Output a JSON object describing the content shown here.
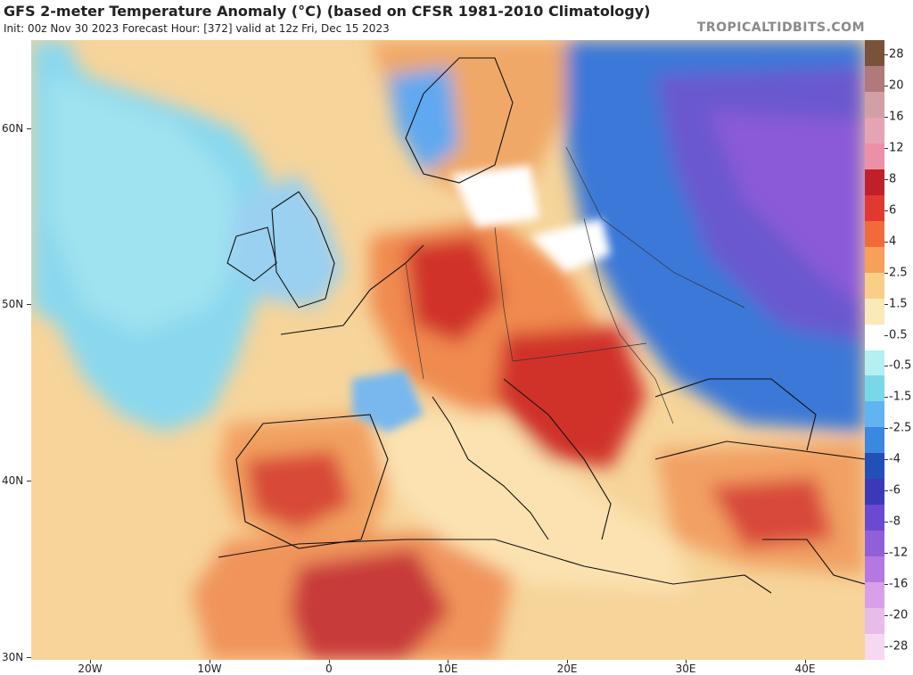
{
  "header": {
    "title": "GFS 2-meter Temperature Anomaly (°C) (based on CFSR 1981-2010 Climatology)",
    "subtitle": "Init: 00z Nov 30 2023   Forecast Hour: [372]   valid at 12z Fri, Dec 15 2023",
    "brand": "TROPICALTIDBITS.COM"
  },
  "map": {
    "region": "Europe",
    "lat_range": [
      30,
      65
    ],
    "lon_range": [
      -25,
      45
    ],
    "lat_labels": [
      {
        "lat": 60,
        "label": "60N"
      },
      {
        "lat": 50,
        "label": "50N"
      },
      {
        "lat": 40,
        "label": "40N"
      },
      {
        "lat": 30,
        "label": "30N"
      }
    ],
    "lon_labels": [
      {
        "lon": -20,
        "label": "20W"
      },
      {
        "lon": -10,
        "label": "10W"
      },
      {
        "lon": 0,
        "label": "0"
      },
      {
        "lon": 10,
        "label": "10E"
      },
      {
        "lon": 20,
        "label": "20E"
      },
      {
        "lon": 30,
        "label": "30E"
      },
      {
        "lon": 40,
        "label": "40E"
      }
    ]
  },
  "colorbar": {
    "labels": [
      "28",
      "20",
      "16",
      "12",
      "8",
      "6",
      "4",
      "2.5",
      "1.5",
      "0.5",
      "-0.5",
      "-1.5",
      "-2.5",
      "-4",
      "-6",
      "-8",
      "-12",
      "-16",
      "-20",
      "-28"
    ],
    "colors": [
      "#7a5238",
      "#b07a7a",
      "#d2a0a4",
      "#e4a4b4",
      "#ec90a8",
      "#c0202a",
      "#e03a30",
      "#f26a3a",
      "#f6a058",
      "#f9cf88",
      "#fbe9b8",
      "#ffffff",
      "#b4f0f2",
      "#78d8e8",
      "#60b4f0",
      "#3a88e0",
      "#2050b8",
      "#3a3ab8",
      "#6a4ad0",
      "#9060d8",
      "#b478e0",
      "#d8a0e8",
      "#e8bce8",
      "#f6d8f0"
    ]
  },
  "colors": {
    "ocean_warm": "#f4c98a",
    "ocean_cool": "#8ad8ee",
    "warm_core": "#c0202a",
    "cold_core": "#2050b8",
    "very_cold": "#8050d8"
  }
}
